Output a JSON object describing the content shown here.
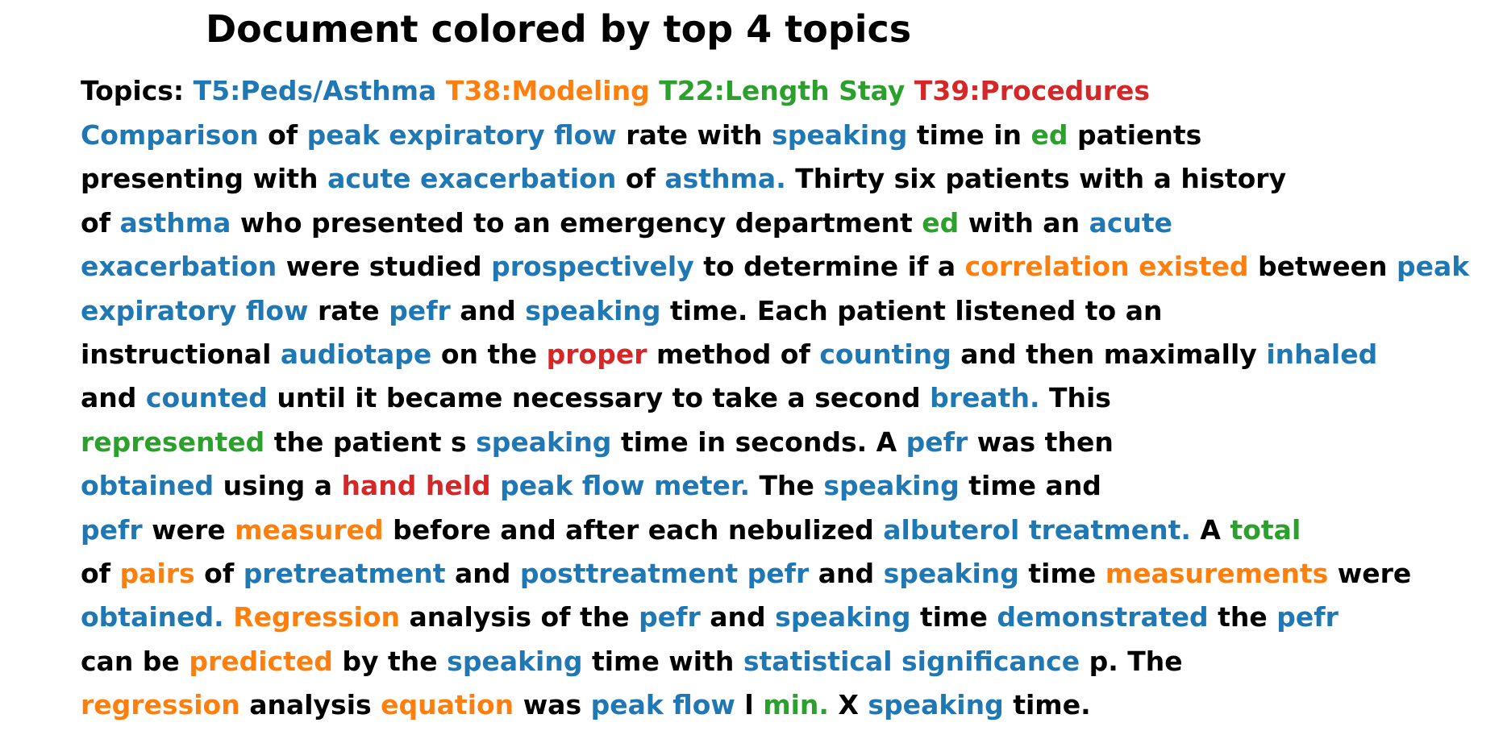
{
  "title": "Document colored by top 4 topics",
  "colors": {
    "none": "#000000",
    "T5": "#1f77b4",
    "T38": "#ff7f0e",
    "T22": "#2ca02c",
    "T39": "#d62728"
  },
  "legend": {
    "label": "Topics:",
    "topics": [
      {
        "id": "T5",
        "text": "T5:Peds/Asthma"
      },
      {
        "id": "T38",
        "text": "T38:Modeling"
      },
      {
        "id": "T22",
        "text": "T22:Length Stay"
      },
      {
        "id": "T39",
        "text": "T39:Procedures"
      }
    ]
  },
  "lines": [
    [
      [
        "Comparison",
        "T5"
      ],
      [
        "of",
        null
      ],
      [
        "peak expiratory flow",
        "T5"
      ],
      [
        "rate with",
        null
      ],
      [
        "speaking",
        "T5"
      ],
      [
        "time in",
        null
      ],
      [
        "ed",
        "T22"
      ],
      [
        "patients",
        null
      ]
    ],
    [
      [
        "presenting with",
        null
      ],
      [
        "acute exacerbation",
        "T5"
      ],
      [
        "of",
        null
      ],
      [
        "asthma.",
        "T5"
      ],
      [
        "Thirty six patients with a history",
        null
      ]
    ],
    [
      [
        "of",
        null
      ],
      [
        "asthma",
        "T5"
      ],
      [
        "who presented to an emergency department",
        null
      ],
      [
        "ed",
        "T22"
      ],
      [
        "with an",
        null
      ],
      [
        "acute",
        "T5"
      ]
    ],
    [
      [
        "exacerbation",
        "T5"
      ],
      [
        "were studied",
        null
      ],
      [
        "prospectively",
        "T5"
      ],
      [
        "to determine if a",
        null
      ],
      [
        "correlation existed",
        "T38"
      ],
      [
        "between",
        null
      ],
      [
        "peak",
        "T5"
      ]
    ],
    [
      [
        "expiratory flow",
        "T5"
      ],
      [
        "rate",
        null
      ],
      [
        "pefr",
        "T5"
      ],
      [
        "and",
        null
      ],
      [
        "speaking",
        "T5"
      ],
      [
        "time. Each patient listened to an",
        null
      ]
    ],
    [
      [
        "instructional",
        null
      ],
      [
        "audiotape",
        "T5"
      ],
      [
        "on the",
        null
      ],
      [
        "proper",
        "T39"
      ],
      [
        "method of",
        null
      ],
      [
        "counting",
        "T5"
      ],
      [
        "and then maximally",
        null
      ],
      [
        "inhaled",
        "T5"
      ]
    ],
    [
      [
        "and",
        null
      ],
      [
        "counted",
        "T5"
      ],
      [
        "until it became necessary to take a second",
        null
      ],
      [
        "breath.",
        "T5"
      ],
      [
        "This",
        null
      ]
    ],
    [
      [
        "represented",
        "T22"
      ],
      [
        "the patient s",
        null
      ],
      [
        "speaking",
        "T5"
      ],
      [
        "time in seconds. A",
        null
      ],
      [
        "pefr",
        "T5"
      ],
      [
        "was then",
        null
      ]
    ],
    [
      [
        "obtained",
        "T5"
      ],
      [
        "using a",
        null
      ],
      [
        "hand held",
        "T39"
      ],
      [
        "peak flow meter.",
        "T5"
      ],
      [
        "The",
        null
      ],
      [
        "speaking",
        "T5"
      ],
      [
        "time and",
        null
      ]
    ],
    [
      [
        "pefr",
        "T5"
      ],
      [
        "were",
        null
      ],
      [
        "measured",
        "T38"
      ],
      [
        "before and after each nebulized",
        null
      ],
      [
        "albuterol treatment.",
        "T5"
      ],
      [
        "A",
        null
      ],
      [
        "total",
        "T22"
      ]
    ],
    [
      [
        "of",
        null
      ],
      [
        "pairs",
        "T38"
      ],
      [
        "of",
        null
      ],
      [
        "pretreatment",
        "T5"
      ],
      [
        "and",
        null
      ],
      [
        "posttreatment pefr",
        "T5"
      ],
      [
        "and",
        null
      ],
      [
        "speaking",
        "T5"
      ],
      [
        "time",
        null
      ],
      [
        "measurements",
        "T38"
      ],
      [
        "were",
        null
      ]
    ],
    [
      [
        "obtained.",
        "T5"
      ],
      [
        "Regression",
        "T38"
      ],
      [
        "analysis of the",
        null
      ],
      [
        "pefr",
        "T5"
      ],
      [
        "and",
        null
      ],
      [
        "speaking",
        "T5"
      ],
      [
        "time",
        null
      ],
      [
        "demonstrated",
        "T5"
      ],
      [
        "the",
        null
      ],
      [
        "pefr",
        "T5"
      ]
    ],
    [
      [
        "can be",
        null
      ],
      [
        "predicted",
        "T38"
      ],
      [
        "by the",
        null
      ],
      [
        "speaking",
        "T5"
      ],
      [
        "time with",
        null
      ],
      [
        "statistical significance",
        "T5"
      ],
      [
        "p. The",
        null
      ]
    ],
    [
      [
        "regression",
        "T38"
      ],
      [
        "analysis",
        null
      ],
      [
        "equation",
        "T38"
      ],
      [
        "was",
        null
      ],
      [
        "peak flow",
        "T5"
      ],
      [
        "l",
        null
      ],
      [
        "min.",
        "T22"
      ],
      [
        "X",
        null
      ],
      [
        "speaking",
        "T5"
      ],
      [
        "time.",
        null
      ]
    ]
  ]
}
